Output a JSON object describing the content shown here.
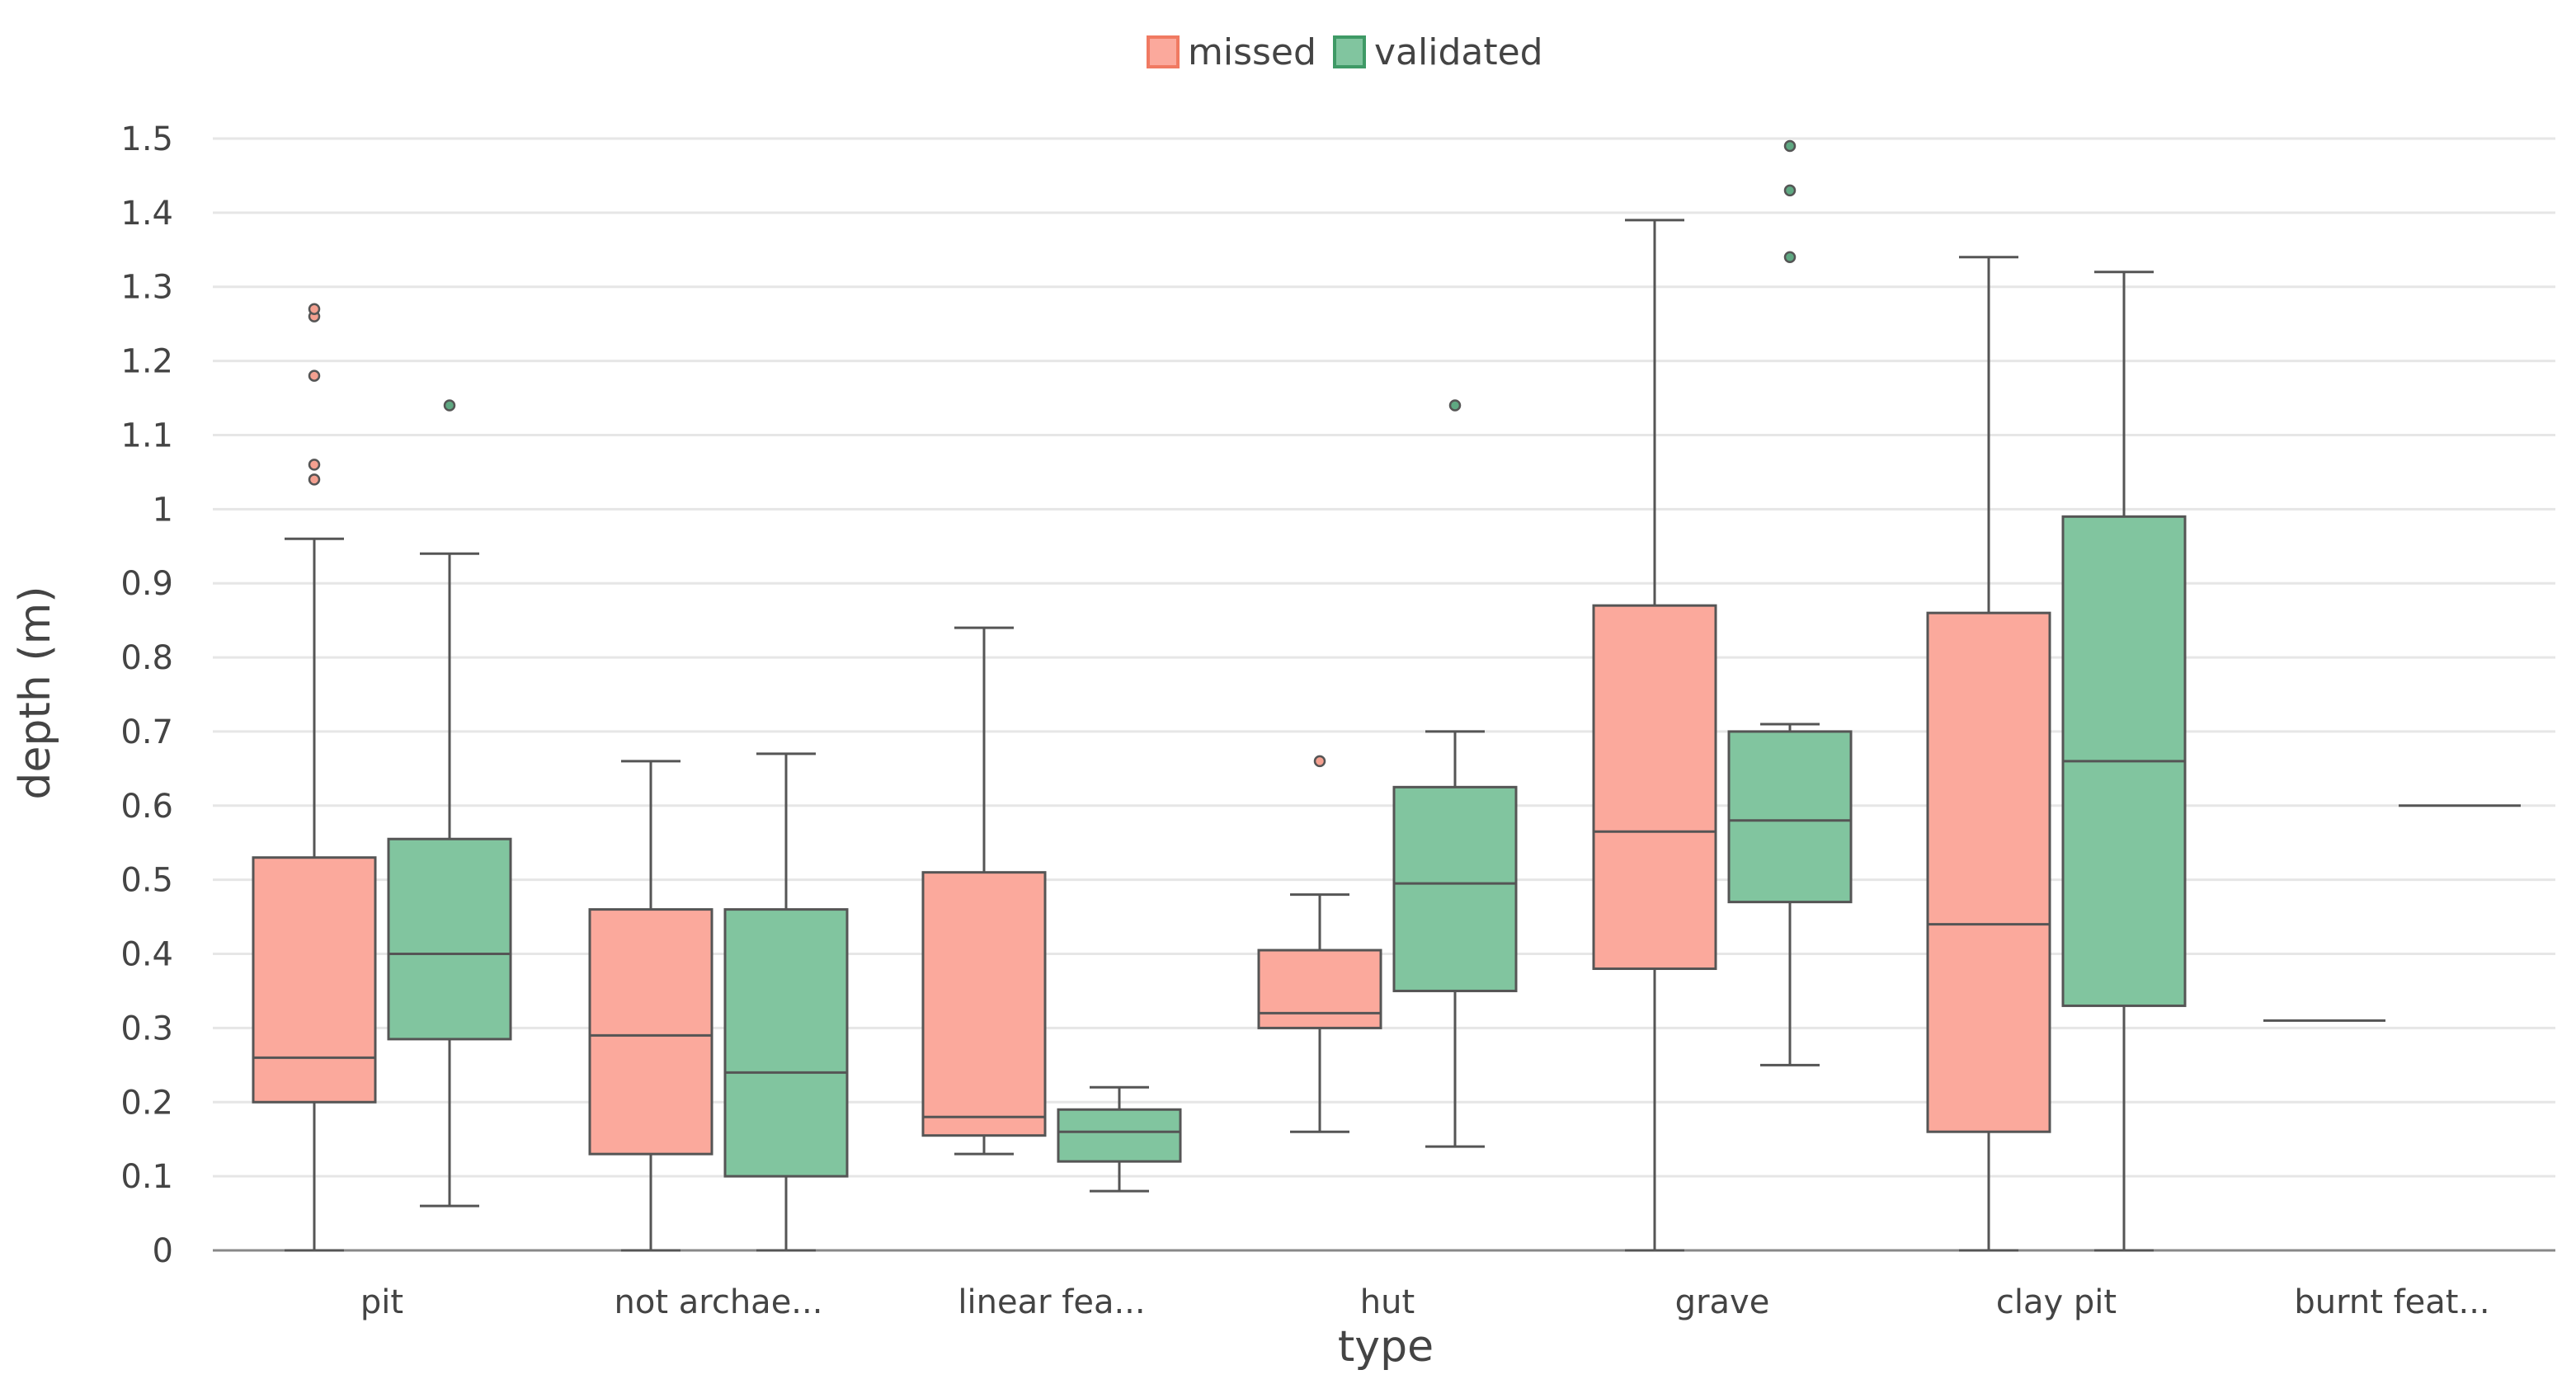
{
  "chart_data": {
    "type": "boxplot",
    "title": "",
    "xlabel": "type",
    "ylabel": "depth (m)",
    "ylim": [
      0,
      1.5
    ],
    "yticks": [
      0,
      0.1,
      0.2,
      0.3,
      0.4,
      0.5,
      0.6,
      0.7,
      0.8,
      0.9,
      1,
      1.1,
      1.2,
      1.3,
      1.4,
      1.5
    ],
    "ytick_labels": [
      "0",
      "0.1",
      "0.2",
      "0.3",
      "0.4",
      "0.5",
      "0.6",
      "0.7",
      "0.8",
      "0.9",
      "1",
      "1.1",
      "1.2",
      "1.3",
      "1.4",
      "1.5"
    ],
    "grid": true,
    "legend_position": "top-center",
    "categories": [
      "pit",
      "not archae...",
      "linear fea...",
      "hut",
      "grave",
      "clay pit",
      "burnt feat..."
    ],
    "series": [
      {
        "name": "missed",
        "fill": "#fba99c",
        "legend_stroke": "#f07a62",
        "outlier_fill": "#f4a090",
        "boxes": [
          {
            "whisker_low": 0,
            "q1": 0.2,
            "median": 0.26,
            "q3": 0.53,
            "whisker_high": 0.96,
            "outliers": [
              1.04,
              1.06,
              1.18,
              1.26,
              1.27
            ]
          },
          {
            "whisker_low": 0,
            "q1": 0.13,
            "median": 0.29,
            "q3": 0.46,
            "whisker_high": 0.66,
            "outliers": []
          },
          {
            "whisker_low": 0.13,
            "q1": 0.155,
            "median": 0.18,
            "q3": 0.51,
            "whisker_high": 0.84,
            "outliers": []
          },
          {
            "whisker_low": 0.16,
            "q1": 0.3,
            "median": 0.32,
            "q3": 0.405,
            "whisker_high": 0.48,
            "outliers": [
              0.66
            ]
          },
          {
            "whisker_low": 0,
            "q1": 0.38,
            "median": 0.565,
            "q3": 0.87,
            "whisker_high": 1.39,
            "outliers": []
          },
          {
            "whisker_low": 0,
            "q1": 0.16,
            "median": 0.44,
            "q3": 0.86,
            "whisker_high": 1.34,
            "outliers": []
          },
          {
            "whisker_low": 0.31,
            "q1": 0.31,
            "median": 0.31,
            "q3": 0.31,
            "whisker_high": 0.31,
            "outliers": []
          }
        ]
      },
      {
        "name": "validated",
        "fill": "#81c59f",
        "legend_stroke": "#3f9a66",
        "outlier_fill": "#5fa882",
        "boxes": [
          {
            "whisker_low": 0.06,
            "q1": 0.285,
            "median": 0.4,
            "q3": 0.555,
            "whisker_high": 0.94,
            "outliers": [
              1.14
            ]
          },
          {
            "whisker_low": 0,
            "q1": 0.1,
            "median": 0.24,
            "q3": 0.46,
            "whisker_high": 0.67,
            "outliers": []
          },
          {
            "whisker_low": 0.08,
            "q1": 0.12,
            "median": 0.16,
            "q3": 0.19,
            "whisker_high": 0.22,
            "outliers": []
          },
          {
            "whisker_low": 0.14,
            "q1": 0.35,
            "median": 0.495,
            "q3": 0.625,
            "whisker_high": 0.7,
            "outliers": [
              1.14
            ]
          },
          {
            "whisker_low": 0.25,
            "q1": 0.47,
            "median": 0.58,
            "q3": 0.7,
            "whisker_high": 0.71,
            "outliers": [
              1.34,
              1.43,
              1.49
            ]
          },
          {
            "whisker_low": 0,
            "q1": 0.33,
            "median": 0.66,
            "q3": 0.99,
            "whisker_high": 1.32,
            "outliers": []
          },
          {
            "whisker_low": 0.6,
            "q1": 0.6,
            "median": 0.6,
            "q3": 0.6,
            "whisker_high": 0.6,
            "outliers": []
          }
        ]
      }
    ]
  },
  "colors": {
    "line": "#555555",
    "grid": "#e6e6e6",
    "axis": "#888888"
  }
}
